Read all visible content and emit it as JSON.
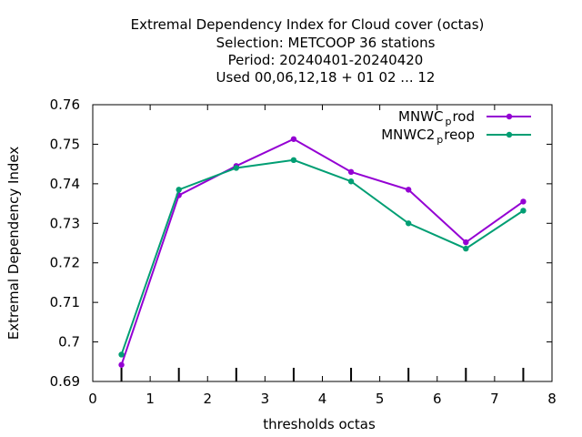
{
  "chart_data": {
    "type": "line",
    "title_lines": [
      "Extremal Dependency Index  for Cloud cover (octas)",
      "Selection: METCOOP     36 stations",
      "Period: 20240401-20240420",
      "Used  00,06,12,18 + 01 02 ... 12"
    ],
    "xlabel": "thresholds octas",
    "ylabel": "Extremal Dependency Index",
    "xlim": [
      0,
      8
    ],
    "ylim": [
      0.69,
      0.76
    ],
    "x_ticks": [
      "0",
      "1",
      "2",
      "3",
      "4",
      "5",
      "6",
      "7",
      "8"
    ],
    "y_ticks": [
      "0.69",
      "0.7",
      "0.71",
      "0.72",
      "0.73",
      "0.74",
      "0.75",
      "0.76"
    ],
    "x": [
      0.5,
      1.5,
      2.5,
      3.5,
      4.5,
      5.5,
      6.5,
      7.5
    ],
    "grid": false,
    "legend_position": "top-right",
    "series": [
      {
        "name": "MNWC_prod",
        "legend_main": "MNWC",
        "legend_sub": "p",
        "legend_tail": "rod",
        "color": "#9400d3",
        "values": [
          0.6942,
          0.7371,
          0.7445,
          0.7513,
          0.743,
          0.7385,
          0.7252,
          0.7355
        ]
      },
      {
        "name": "MNWC2_preop",
        "legend_main": "MNWC2",
        "legend_sub": "p",
        "legend_tail": "reop",
        "color": "#009e73",
        "values": [
          0.6968,
          0.7385,
          0.744,
          0.746,
          0.7406,
          0.73,
          0.7236,
          0.7332
        ]
      }
    ]
  }
}
